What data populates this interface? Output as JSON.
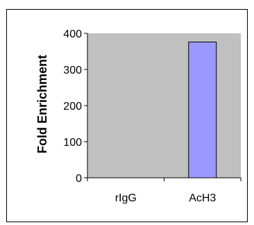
{
  "chart_data": {
    "type": "bar",
    "categories": [
      "rIgG",
      "AcH3"
    ],
    "values": [
      0,
      376
    ],
    "title": "",
    "xlabel": "",
    "ylabel": "Fold Enrichment",
    "ylim": [
      0,
      400
    ],
    "yticks": [
      "0",
      "100",
      "200",
      "300",
      "400"
    ],
    "grid": false,
    "legend": "none",
    "colors": {
      "plot_background": "#c0c0c0",
      "bar_fill": "#9999ff",
      "bar_stroke": "#000000"
    }
  }
}
